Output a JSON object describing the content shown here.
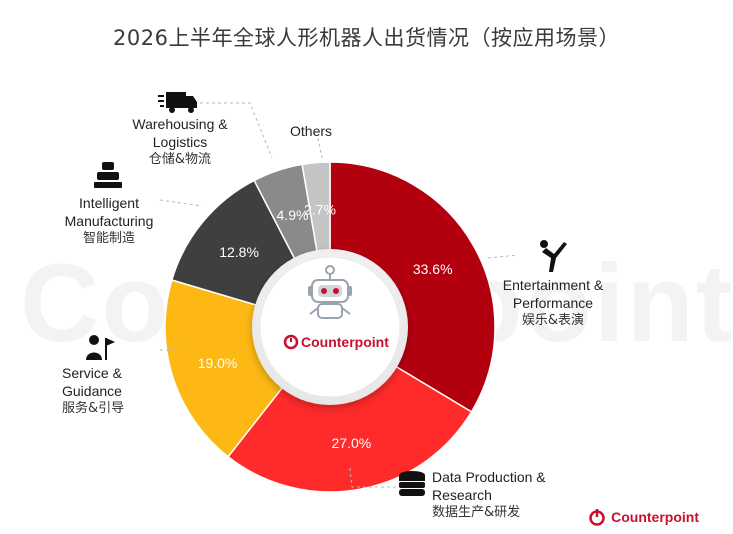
{
  "title": "2026上半年全球人形机器人出货情况（按应用场景）",
  "brand": "Counterpoint",
  "watermark": "Counterpoint",
  "center_brand": "Counterpoint",
  "colors": {
    "brand_red": "#c8102e"
  },
  "chart_data": {
    "type": "pie",
    "title": "2026上半年全球人形机器人出货情况（按应用场景）",
    "donut": true,
    "slices": [
      {
        "label_en": "Entertainment & Performance",
        "label_zh": "娱乐&表演",
        "value": 33.6,
        "display": "33.6%",
        "color": "#b3000f",
        "icon": "dancer-icon"
      },
      {
        "label_en": "Data Production & Research",
        "label_zh": "数据生产&研发",
        "value": 27.0,
        "display": "27.0%",
        "color": "#ff2a2a",
        "icon": "database-icon"
      },
      {
        "label_en": "Service & Guidance",
        "label_zh": "服务&引导",
        "value": 19.0,
        "display": "19.0%",
        "color": "#fdb813",
        "icon": "guide-flag-icon"
      },
      {
        "label_en": "Intelligent Manufacturing",
        "label_zh": "智能制造",
        "value": 12.8,
        "display": "12.8%",
        "color": "#3f3f3f",
        "icon": "manufacturing-robot-icon"
      },
      {
        "label_en": "Warehousing & Logistics",
        "label_zh": "仓储&物流",
        "value": 4.9,
        "display": "4.9%",
        "color": "#8a8a8a",
        "icon": "truck-icon"
      },
      {
        "label_en": "Others",
        "label_zh": "",
        "value": 2.7,
        "display": "2.7%",
        "color": "#c4c4c4",
        "icon": ""
      }
    ]
  }
}
